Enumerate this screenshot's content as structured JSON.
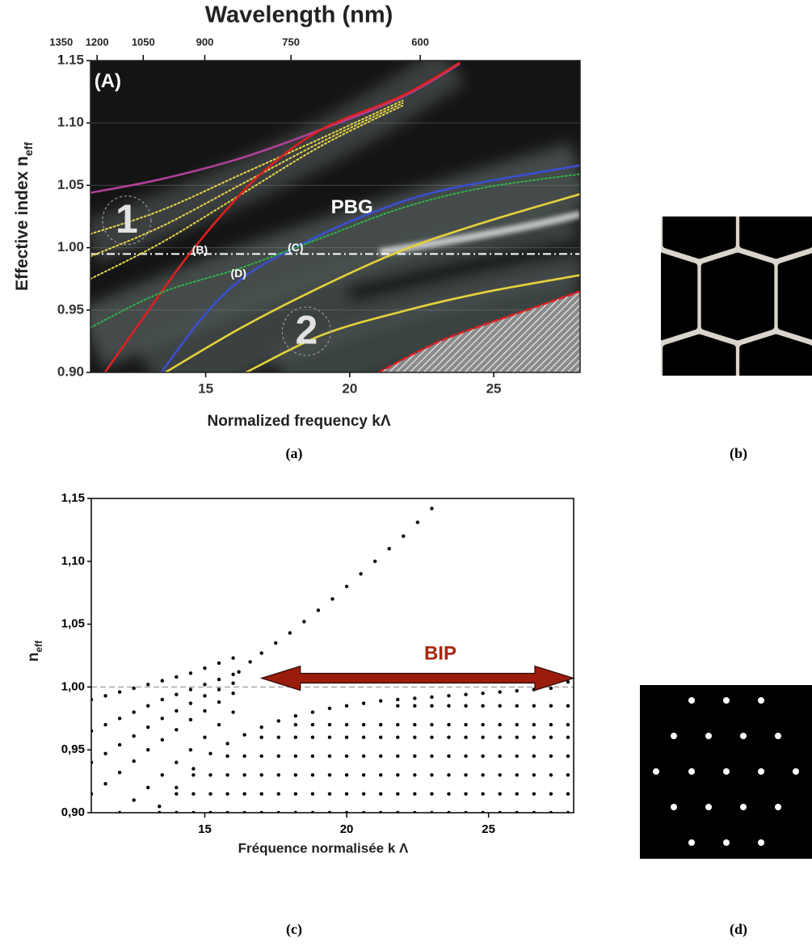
{
  "chart_data": [
    {
      "type": "line",
      "x2label": "Wavelength (nm)",
      "xlabel": "Normalized frequency kΛ",
      "ylabel": "Effective index n",
      "ylabel_sub": "eff",
      "xlim": [
        11,
        28
      ],
      "ylim": [
        0.9,
        1.15
      ],
      "xticks": [
        15,
        20,
        25
      ],
      "yticks": [
        {
          "value": 0.9,
          "label": "0.90"
        },
        0.95,
        {
          "value": 1.0,
          "label": "1.00"
        },
        1.05,
        {
          "value": 1.1,
          "label": "1.10"
        },
        1.15
      ],
      "x2lim": [
        1225,
        481
      ],
      "x2scale": "reciprocal",
      "x2ticks": [
        1350,
        1200,
        1050,
        900,
        750,
        600
      ],
      "grid": true,
      "plot_background": "#141414",
      "hline": {
        "y": 0.995,
        "color": "#ffffff",
        "style": "dashdot"
      },
      "series": [
        {
          "color": "#b0409a",
          "style": "solid",
          "x": [
            11,
            13.46,
            16.25,
            19.04,
            21.84,
            23.79
          ],
          "values": [
            1.044,
            1.055,
            1.072,
            1.095,
            1.121,
            1.147
          ]
        },
        {
          "color": "#e8d84a",
          "style": "dotted",
          "x": [
            11,
            13.46,
            16.25,
            19.04,
            21.84
          ],
          "values": [
            1.011,
            1.03,
            1.059,
            1.088,
            1.118
          ]
        },
        {
          "color": "#e8d84a",
          "style": "dotted",
          "x": [
            11,
            13.46,
            16.25,
            19.04,
            21.84
          ],
          "values": [
            0.993,
            1.017,
            1.051,
            1.085,
            1.116
          ]
        },
        {
          "color": "#e8d84a",
          "style": "dotted",
          "x": [
            11,
            13.46,
            16.25,
            19.04,
            21.84
          ],
          "values": [
            0.975,
            1.004,
            1.043,
            1.082,
            1.114
          ]
        },
        {
          "color": "#e02020",
          "style": "solid",
          "x": [
            11.5,
            12.9,
            14.3,
            15.7,
            17.1,
            19.04,
            21.84,
            23.8
          ],
          "values": [
            0.9,
            0.946,
            0.991,
            1.03,
            1.063,
            1.095,
            1.122,
            1.148
          ]
        },
        {
          "color": "#3a4fd0",
          "style": "solid",
          "x": [
            13.46,
            14.85,
            16.25,
            17.93,
            20.44,
            23.23,
            28
          ],
          "values": [
            0.9,
            0.943,
            0.975,
            0.998,
            1.025,
            1.046,
            1.066
          ]
        },
        {
          "color": "#2fb34a",
          "style": "dotted",
          "x": [
            11,
            13.46,
            16.25,
            19.04,
            21.84,
            24.63,
            28
          ],
          "values": [
            0.936,
            0.964,
            0.984,
            1.008,
            1.032,
            1.048,
            1.059
          ]
        },
        {
          "color": "#e6d23a",
          "style": "solid",
          "x": [
            13.6,
            16.25,
            19.04,
            21.84,
            24.63,
            28
          ],
          "values": [
            0.9,
            0.936,
            0.969,
            0.998,
            1.02,
            1.043
          ]
        },
        {
          "color": "#e6d23a",
          "style": "solid",
          "x": [
            16.4,
            19.04,
            21.84,
            24.63,
            28
          ],
          "values": [
            0.9,
            0.93,
            0.949,
            0.964,
            0.978
          ]
        },
        {
          "color": "#e02020",
          "style": "dashed",
          "fill": "hatch",
          "x": [
            21,
            23.23,
            26.03,
            28
          ],
          "values": [
            0.9,
            0.926,
            0.949,
            0.965
          ]
        }
      ],
      "annotations": [
        {
          "text": "(A)",
          "x": 11.6,
          "y": 1.134,
          "size": "large"
        },
        {
          "text": "PBG",
          "x": 20.08,
          "y": 1.033,
          "size": "large"
        },
        {
          "text": "1",
          "x": 12.26,
          "y": 1.022,
          "size": "huge",
          "circled": true
        },
        {
          "text": "2",
          "x": 18.5,
          "y": 0.933,
          "size": "huge",
          "circled": true
        },
        {
          "text": "(B)",
          "x": 14.8,
          "y": 0.999,
          "size": "small"
        },
        {
          "text": "(C)",
          "x": 18.12,
          "y": 1.001,
          "size": "small"
        },
        {
          "text": "(D)",
          "x": 16.14,
          "y": 0.98,
          "size": "small"
        }
      ]
    },
    {
      "type": "scatter",
      "xlabel": "Fréquence normalisée k Λ",
      "ylabel": "n",
      "ylabel_sub": "eff",
      "xlim": [
        11,
        28
      ],
      "ylim": [
        0.9,
        1.15
      ],
      "xticks": [
        15,
        20,
        25
      ],
      "yticks": [
        {
          "value": 0.9,
          "label": "0,90"
        },
        {
          "value": 0.95,
          "label": "0,95"
        },
        {
          "value": 1.0,
          "label": "1,00"
        },
        {
          "value": 1.05,
          "label": "1,05"
        },
        {
          "value": 1.1,
          "label": "1,10"
        },
        {
          "value": 1.15,
          "label": "1,15"
        }
      ],
      "grid": false,
      "color": "#000000",
      "plot_background": "#ffffff",
      "hline": {
        "y": 1.0,
        "color": "#888888",
        "style": "dashed"
      },
      "arrow": {
        "x": [
          17,
          28
        ],
        "y": 1.007,
        "color": "#9b1c0c"
      },
      "annotations": [
        {
          "text": "BIP",
          "x": 23.3,
          "y": 1.027,
          "size": "large",
          "color": "#a8280c"
        }
      ],
      "series": [
        {
          "x": [
            16.2,
            16.6,
            17,
            17.5,
            18,
            18.5,
            19,
            19.5,
            20,
            20.5,
            21,
            21.5,
            22,
            22.5,
            23
          ],
          "values": [
            1.012,
            1.02,
            1.027,
            1.035,
            1.043,
            1.052,
            1.061,
            1.07,
            1.08,
            1.09,
            1.1,
            1.11,
            1.12,
            1.131,
            1.142
          ]
        },
        {
          "x": [
            11,
            11.5,
            12,
            12.5,
            13,
            13.5,
            14,
            14.5,
            15,
            15.5,
            16
          ],
          "values": [
            0.99,
            0.993,
            0.996,
            0.999,
            1.002,
            1.005,
            1.008,
            1.011,
            1.015,
            1.019,
            1.023
          ]
        },
        {
          "x": [
            11,
            11.5,
            12,
            12.5,
            13,
            13.5,
            14,
            14.5,
            15,
            15.5,
            16
          ],
          "values": [
            0.965,
            0.97,
            0.975,
            0.98,
            0.985,
            0.99,
            0.994,
            0.998,
            1.002,
            1.006,
            1.01
          ]
        },
        {
          "x": [
            11,
            11.5,
            12,
            12.5,
            13,
            13.5,
            14,
            14.5,
            15,
            15.5,
            16
          ],
          "values": [
            0.94,
            0.947,
            0.954,
            0.961,
            0.968,
            0.975,
            0.981,
            0.987,
            0.993,
            0.998,
            1.003
          ]
        },
        {
          "x": [
            11,
            11.5,
            12,
            12.5,
            13,
            13.5,
            14,
            14.5,
            15,
            15.5,
            16
          ],
          "values": [
            0.915,
            0.923,
            0.932,
            0.941,
            0.95,
            0.958,
            0.966,
            0.974,
            0.981,
            0.988,
            0.995
          ]
        },
        {
          "x": [
            12,
            12.5,
            13,
            13.5,
            14,
            14.5,
            15,
            15.5,
            16
          ],
          "values": [
            0.9,
            0.91,
            0.92,
            0.93,
            0.94,
            0.95,
            0.96,
            0.97,
            0.98
          ]
        },
        {
          "x": 13.4,
          "values": [
            0.905,
            0.9
          ]
        },
        {
          "x": 14.0,
          "values": [
            0.92,
            0.915,
            0.9
          ]
        },
        {
          "x": 14.6,
          "values": [
            0.935,
            0.93,
            0.915,
            0.9
          ]
        },
        {
          "x": 15.2,
          "values": [
            0.947,
            0.93,
            0.915,
            0.9
          ]
        },
        {
          "x": 15.8,
          "values": [
            0.955,
            0.945,
            0.93,
            0.915,
            0.9
          ]
        },
        {
          "x": 16.4,
          "values": [
            0.962,
            0.945,
            0.93,
            0.915,
            0.9
          ]
        },
        {
          "x": 17.0,
          "values": [
            0.968,
            0.96,
            0.945,
            0.93,
            0.915,
            0.9
          ]
        },
        {
          "x": 17.6,
          "values": [
            0.973,
            0.96,
            0.945,
            0.93,
            0.915,
            0.9
          ]
        },
        {
          "x": 18.2,
          "values": [
            0.977,
            0.97,
            0.96,
            0.945,
            0.93,
            0.915,
            0.9
          ]
        },
        {
          "x": 18.8,
          "values": [
            0.98,
            0.97,
            0.96,
            0.945,
            0.93,
            0.915,
            0.9
          ]
        },
        {
          "x": 19.4,
          "values": [
            0.983,
            0.97,
            0.96,
            0.945,
            0.93,
            0.915,
            0.9
          ]
        },
        {
          "x": 20.0,
          "values": [
            0.985,
            0.97,
            0.96,
            0.945,
            0.93,
            0.915,
            0.9
          ]
        },
        {
          "x": 20.6,
          "values": [
            0.987,
            0.97,
            0.96,
            0.945,
            0.93,
            0.915,
            0.9
          ]
        },
        {
          "x": 21.2,
          "values": [
            0.989,
            0.97,
            0.96,
            0.945,
            0.93,
            0.915,
            0.9
          ]
        },
        {
          "x": 21.8,
          "values": [
            0.99,
            0.985,
            0.97,
            0.96,
            0.945,
            0.93,
            0.915,
            0.9
          ]
        },
        {
          "x": 22.4,
          "values": [
            0.991,
            0.985,
            0.97,
            0.96,
            0.945,
            0.93,
            0.915,
            0.9
          ]
        },
        {
          "x": 23.0,
          "values": [
            0.992,
            0.985,
            0.97,
            0.96,
            0.945,
            0.93,
            0.915,
            0.9
          ]
        },
        {
          "x": 23.6,
          "values": [
            0.993,
            0.985,
            0.97,
            0.96,
            0.945,
            0.93,
            0.915,
            0.9
          ]
        },
        {
          "x": 24.2,
          "values": [
            0.994,
            0.985,
            0.97,
            0.96,
            0.945,
            0.93,
            0.915,
            0.9
          ]
        },
        {
          "x": 24.8,
          "values": [
            0.995,
            0.985,
            0.97,
            0.96,
            0.945,
            0.93,
            0.915,
            0.9
          ]
        },
        {
          "x": 25.4,
          "values": [
            0.996,
            0.985,
            0.97,
            0.96,
            0.945,
            0.93,
            0.915,
            0.9
          ]
        },
        {
          "x": 26.0,
          "values": [
            0.997,
            0.985,
            0.97,
            0.96,
            0.945,
            0.93,
            0.915,
            0.9
          ]
        },
        {
          "x": 26.6,
          "values": [
            0.998,
            0.985,
            0.97,
            0.96,
            0.945,
            0.93,
            0.915,
            0.9
          ]
        },
        {
          "x": 27.2,
          "values": [
            0.999,
            0.985,
            0.97,
            0.96,
            0.945,
            0.93,
            0.915,
            0.9
          ]
        },
        {
          "x": 27.8,
          "values": [
            1.004,
            0.985,
            0.97,
            0.96,
            0.945,
            0.93,
            0.915,
            0.9
          ]
        }
      ]
    }
  ],
  "captions": [
    "(a)",
    "(b)",
    "(c)",
    "(d)"
  ]
}
